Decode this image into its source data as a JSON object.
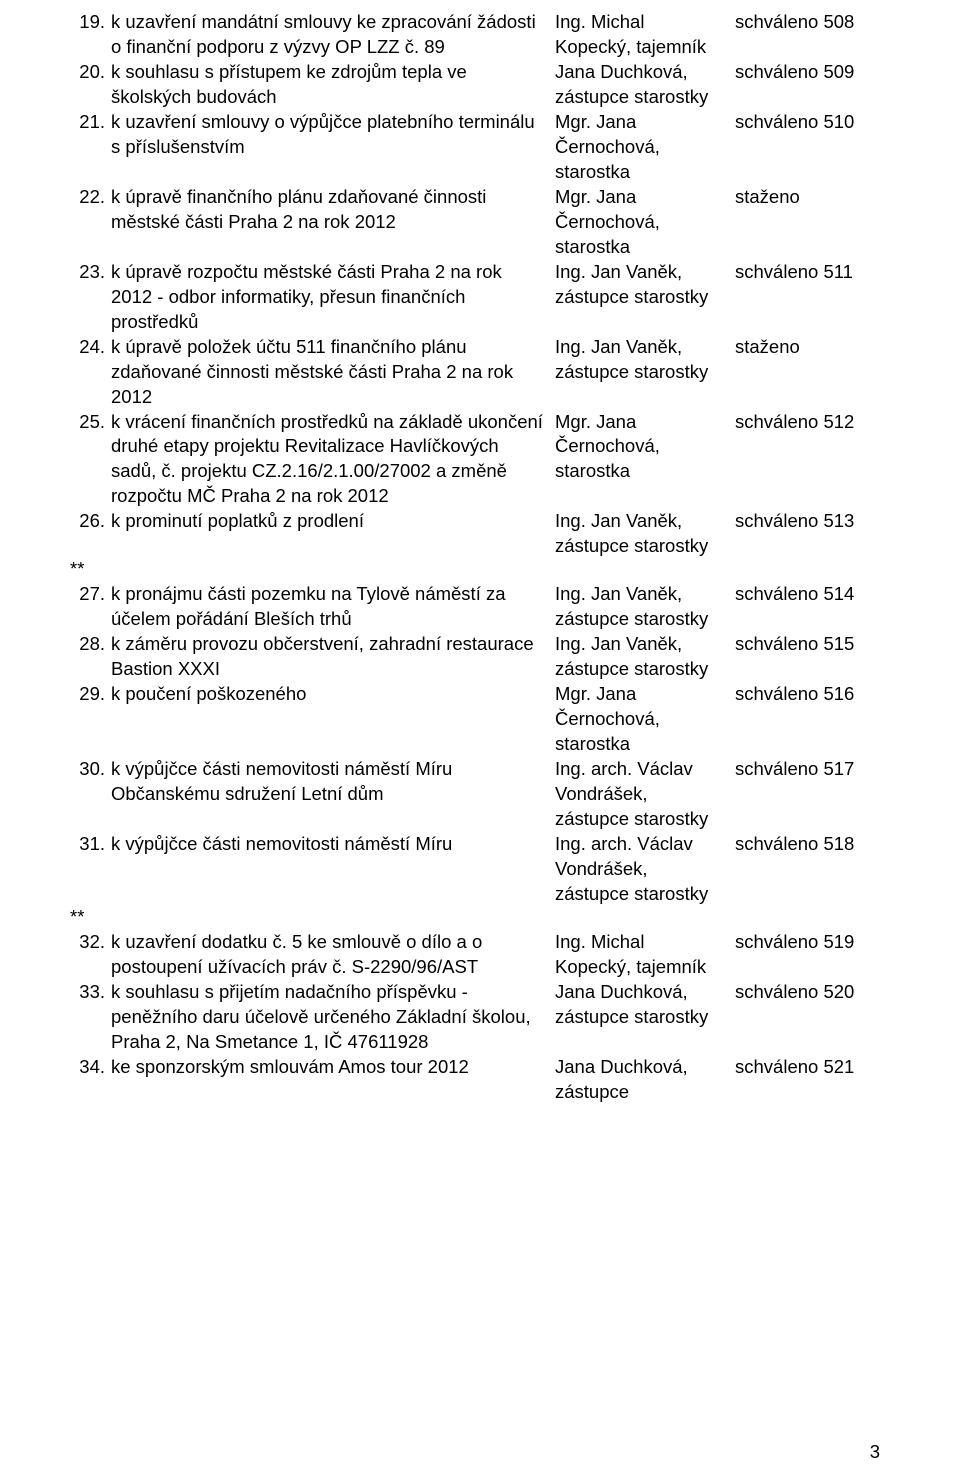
{
  "page_number": "3",
  "rows": [
    {
      "num": "19.",
      "title": "k uzavření mandátní smlouvy ke zpracování žádosti o finanční podporu z výzvy OP LZZ č. 89",
      "person": "Ing. Michal Kopecký, tajemník",
      "status": "schváleno 508",
      "stars": ""
    },
    {
      "num": "20.",
      "title": "k souhlasu s přístupem ke zdrojům tepla ve školských budovách",
      "person": "Jana Duchková, zástupce starostky",
      "status": "schváleno 509",
      "stars": ""
    },
    {
      "num": "21.",
      "title": "k uzavření smlouvy o výpůjčce platebního terminálu s příslušenstvím",
      "person": "Mgr. Jana Černochová, starostka",
      "status": "schváleno 510",
      "stars": ""
    },
    {
      "num": "22.",
      "title": "k úpravě finančního plánu zdaňované činnosti městské části Praha 2 na rok 2012",
      "person": "Mgr. Jana Černochová, starostka",
      "status": "staženo",
      "stars": ""
    },
    {
      "num": "23.",
      "title": "k úpravě rozpočtu městské části Praha 2 na rok 2012 - odbor informatiky, přesun finančních prostředků",
      "person": "Ing. Jan Vaněk, zástupce starostky",
      "status": "schváleno 511",
      "stars": ""
    },
    {
      "num": "24.",
      "title": "k úpravě položek účtu 511 finančního plánu zdaňované činnosti městské části Praha 2 na rok 2012",
      "person": "Ing. Jan Vaněk, zástupce starostky",
      "status": "staženo",
      "stars": ""
    },
    {
      "num": "25.",
      "title": "k vrácení finančních prostředků na základě ukončení druhé etapy projektu Revitalizace Havlíčkových sadů, č. projektu CZ.2.16/2.1.00/27002 a změně rozpočtu MČ Praha 2 na rok 2012",
      "person": "Mgr. Jana Černochová, starostka",
      "status": "schváleno 512",
      "stars": ""
    },
    {
      "num": "26.",
      "title": "k prominutí poplatků z prodlení",
      "person": "Ing. Jan Vaněk, zástupce starostky",
      "status": "schváleno 513",
      "stars": "**"
    },
    {
      "num": "27.",
      "title": "k pronájmu části pozemku na Tylově náměstí za účelem pořádání Bleších trhů",
      "person": "Ing. Jan Vaněk, zástupce starostky",
      "status": "schváleno 514",
      "stars": ""
    },
    {
      "num": "28.",
      "title": "k záměru provozu občerstvení, zahradní restaurace Bastion XXXI",
      "person": "Ing. Jan Vaněk, zástupce starostky",
      "status": "schváleno 515",
      "stars": ""
    },
    {
      "num": "29.",
      "title": "k poučení poškozeného",
      "person": "Mgr. Jana Černochová, starostka",
      "status": "schváleno 516",
      "stars": ""
    },
    {
      "num": "30.",
      "title": "k výpůjčce části nemovitosti náměstí Míru Občanskému sdružení Letní dům",
      "person": "Ing. arch. Václav Vondrášek, zástupce starostky",
      "status": "schváleno 517",
      "stars": ""
    },
    {
      "num": "31.",
      "title": "k výpůjčce části nemovitosti náměstí Míru",
      "person": "Ing. arch. Václav Vondrášek, zástupce starostky",
      "status": "schváleno 518",
      "stars": "**"
    },
    {
      "num": "32.",
      "title": "k uzavření dodatku č. 5 ke smlouvě o dílo a o postoupení užívacích práv č. S-2290/96/AST",
      "person": "Ing. Michal Kopecký, tajemník",
      "status": "schváleno 519",
      "stars": ""
    },
    {
      "num": "33.",
      "title": "k souhlasu s přijetím nadačního příspěvku - peněžního daru účelově určeného Základní školou, Praha 2, Na Smetance 1, IČ 47611928",
      "person": "Jana Duchková, zástupce starostky",
      "status": "schváleno 520",
      "stars": ""
    },
    {
      "num": "34.",
      "title": "ke sponzorským smlouvám Amos tour 2012",
      "person": "Jana Duchková, zástupce",
      "status": "schváleno 521",
      "stars": ""
    }
  ]
}
